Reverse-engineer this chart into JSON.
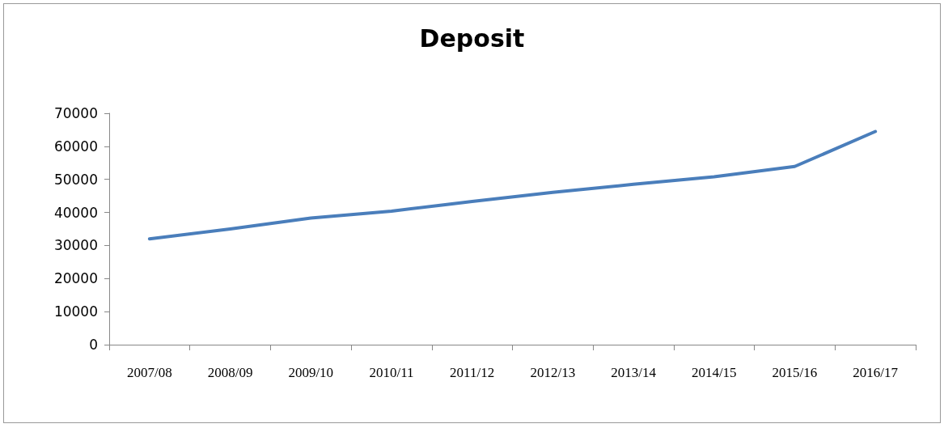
{
  "chart_data": {
    "type": "line",
    "title": "Deposit",
    "categories": [
      "2007/08",
      "2008/09",
      "2009/10",
      "2010/11",
      "2011/12",
      "2012/13",
      "2013/14",
      "2014/15",
      "2015/16",
      "2016/17"
    ],
    "series": [
      {
        "color": "#4a7ebb",
        "values": [
          32000,
          35000,
          38300,
          40400,
          43300,
          46100,
          48500,
          50800,
          53900,
          64500
        ]
      }
    ],
    "ylim": [
      0,
      70000
    ],
    "yticks": [
      0,
      10000,
      20000,
      30000,
      40000,
      50000,
      60000,
      70000
    ],
    "grid": false,
    "marker": "none",
    "line_style": "solid"
  }
}
